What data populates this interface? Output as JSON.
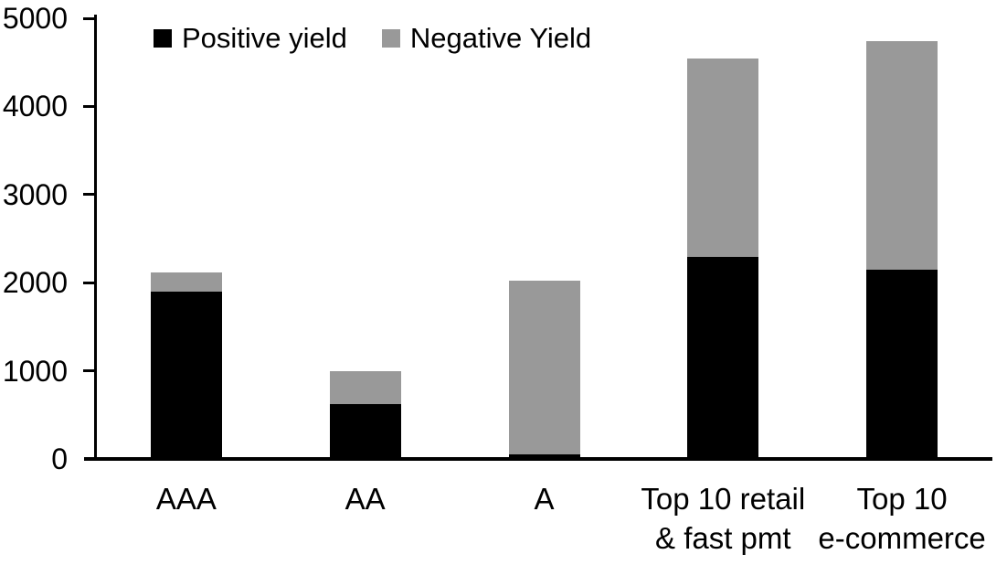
{
  "chart_data": {
    "type": "bar",
    "stacked": true,
    "title": "",
    "xlabel": "",
    "ylabel": "",
    "grid": false,
    "legend_position": "top",
    "ylim": [
      0,
      5000
    ],
    "yticks": [
      0,
      1000,
      2000,
      3000,
      4000,
      5000
    ],
    "categories": [
      "AAA",
      "AA",
      "A",
      "Top 10 retail\n& fast pmt",
      "Top 10\ne-commerce"
    ],
    "series": [
      {
        "name": "Positive yield",
        "color": "#000000",
        "values": [
          1900,
          620,
          50,
          2290,
          2150
        ]
      },
      {
        "name": "Negative Yield",
        "color": "#999999",
        "values": [
          220,
          380,
          1970,
          2250,
          2590
        ]
      }
    ],
    "totals": [
      2120,
      1000,
      2020,
      4540,
      4740
    ],
    "axis_color": "#000000",
    "background_color": "#ffffff"
  }
}
